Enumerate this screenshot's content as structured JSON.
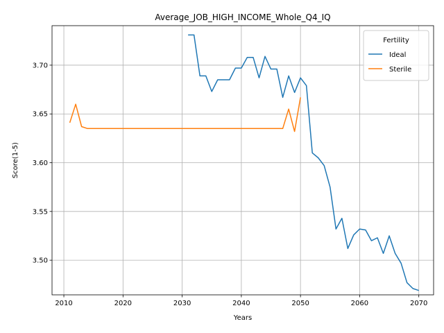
{
  "chart_data": {
    "type": "line",
    "title": "Average_JOB_HIGH_INCOME_Whole_Q4_IQ",
    "xlabel": "Years",
    "ylabel": "Score(1-5)",
    "xlim": [
      2008,
      2072.5
    ],
    "ylim": [
      3.4645,
      3.7405
    ],
    "xticks": [
      2010,
      2020,
      2030,
      2040,
      2050,
      2060,
      2070
    ],
    "yticks": [
      3.5,
      3.55,
      3.6,
      3.65,
      3.7
    ],
    "ytick_labels": [
      "3.50",
      "3.55",
      "3.60",
      "3.65",
      "3.70"
    ],
    "grid": true,
    "legend": {
      "title": "Fertility",
      "placement": "top-right"
    },
    "series": [
      {
        "name": "Ideal",
        "color": "#1f77b4",
        "x": [
          2031,
          2032,
          2033,
          2034,
          2035,
          2036,
          2037,
          2038,
          2039,
          2040,
          2041,
          2042,
          2043,
          2044,
          2045,
          2046,
          2047,
          2048,
          2049,
          2050,
          2051,
          2052,
          2053,
          2054,
          2055,
          2056,
          2057,
          2058,
          2059,
          2060,
          2061,
          2062,
          2063,
          2064,
          2065,
          2066,
          2067,
          2068,
          2069,
          2070
        ],
        "y": [
          3.731,
          3.731,
          3.689,
          3.689,
          3.673,
          3.685,
          3.685,
          3.685,
          3.697,
          3.697,
          3.708,
          3.708,
          3.687,
          3.709,
          3.696,
          3.696,
          3.667,
          3.689,
          3.672,
          3.687,
          3.679,
          3.61,
          3.605,
          3.597,
          3.575,
          3.532,
          3.543,
          3.512,
          3.526,
          3.532,
          3.531,
          3.52,
          3.523,
          3.507,
          3.525,
          3.507,
          3.497,
          3.477,
          3.471,
          3.469
        ]
      },
      {
        "name": "Sterile",
        "color": "#ff7f0e",
        "x": [
          2011,
          2012,
          2013,
          2014,
          2015,
          2016,
          2017,
          2018,
          2019,
          2020,
          2021,
          2022,
          2023,
          2024,
          2025,
          2026,
          2027,
          2028,
          2029,
          2030,
          2031,
          2032,
          2033,
          2034,
          2035,
          2036,
          2037,
          2038,
          2039,
          2040,
          2041,
          2042,
          2043,
          2044,
          2045,
          2046,
          2047,
          2048,
          2049,
          2050
        ],
        "y": [
          3.641,
          3.66,
          3.637,
          3.635,
          3.635,
          3.635,
          3.635,
          3.635,
          3.635,
          3.635,
          3.635,
          3.635,
          3.635,
          3.635,
          3.635,
          3.635,
          3.635,
          3.635,
          3.635,
          3.635,
          3.635,
          3.635,
          3.635,
          3.635,
          3.635,
          3.635,
          3.635,
          3.635,
          3.635,
          3.635,
          3.635,
          3.635,
          3.635,
          3.635,
          3.635,
          3.635,
          3.635,
          3.655,
          3.632,
          3.667
        ]
      }
    ]
  }
}
